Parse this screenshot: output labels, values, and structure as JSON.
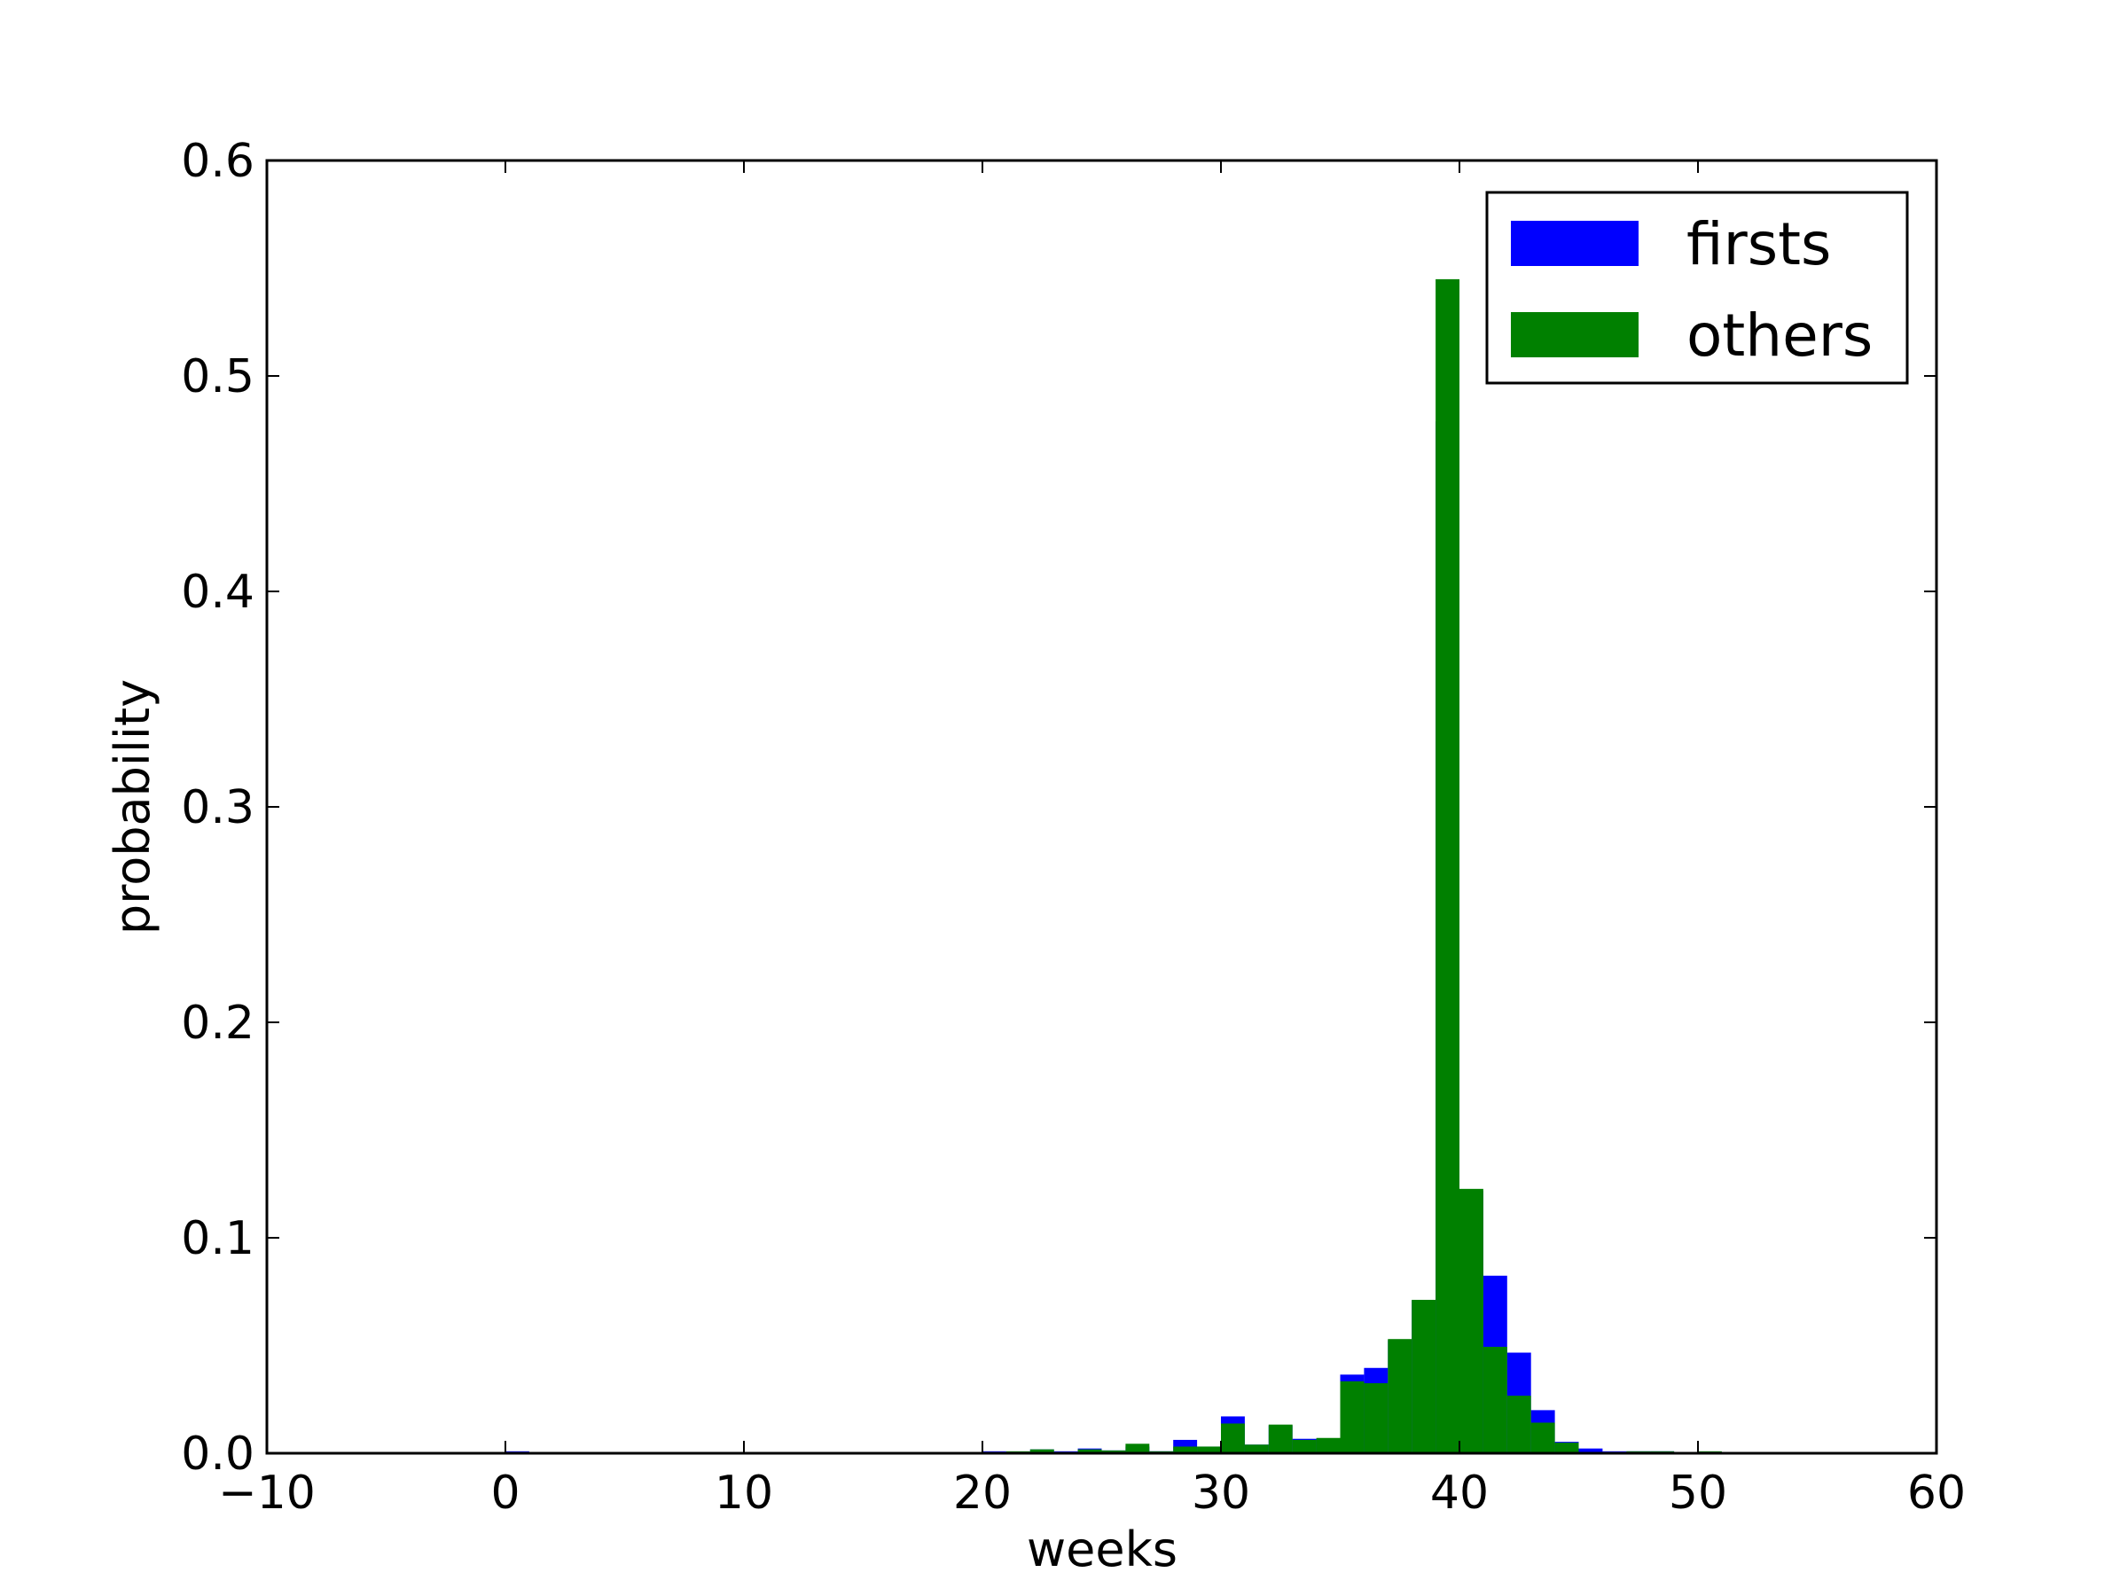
{
  "chart_data": {
    "type": "bar",
    "title": "",
    "xlabel": "weeks",
    "ylabel": "probability",
    "xlim": [
      -10,
      60
    ],
    "ylim": [
      0,
      0.6
    ],
    "xticks": [
      "−10",
      "0",
      "10",
      "20",
      "30",
      "40",
      "50",
      "60"
    ],
    "yticks": [
      "0.0",
      "0.1",
      "0.2",
      "0.3",
      "0.4",
      "0.5",
      "0.6"
    ],
    "grid": false,
    "legend_position": "top-right",
    "bin_width": 1,
    "series": [
      {
        "name": "firsts",
        "color": "#0000ff",
        "bins": [
          {
            "x": 0,
            "value": 0.0009
          },
          {
            "x": 9,
            "value": 0.0004
          },
          {
            "x": 17,
            "value": 0.0004
          },
          {
            "x": 19,
            "value": 0.0004
          },
          {
            "x": 20,
            "value": 0.0009
          },
          {
            "x": 21,
            "value": 0.0004
          },
          {
            "x": 22,
            "value": 0.0018
          },
          {
            "x": 23,
            "value": 0.0009
          },
          {
            "x": 24,
            "value": 0.0022
          },
          {
            "x": 25,
            "value": 0.0013
          },
          {
            "x": 26,
            "value": 0.0031
          },
          {
            "x": 27,
            "value": 0.0009
          },
          {
            "x": 28,
            "value": 0.0062
          },
          {
            "x": 29,
            "value": 0.0031
          },
          {
            "x": 30,
            "value": 0.0171
          },
          {
            "x": 31,
            "value": 0.004
          },
          {
            "x": 32,
            "value": 0.0129
          },
          {
            "x": 33,
            "value": 0.0067
          },
          {
            "x": 34,
            "value": 0.0067
          },
          {
            "x": 35,
            "value": 0.0365
          },
          {
            "x": 36,
            "value": 0.0396
          },
          {
            "x": 37,
            "value": 0.0525
          },
          {
            "x": 38,
            "value": 0.0709
          },
          {
            "x": 39,
            "value": 0.4789
          },
          {
            "x": 40,
            "value": 0.1218
          },
          {
            "x": 41,
            "value": 0.0824
          },
          {
            "x": 42,
            "value": 0.0467
          },
          {
            "x": 43,
            "value": 0.02
          },
          {
            "x": 44,
            "value": 0.0053
          },
          {
            "x": 45,
            "value": 0.0022
          },
          {
            "x": 46,
            "value": 0.0009
          },
          {
            "x": 47,
            "value": 0.0009
          },
          {
            "x": 48,
            "value": 0.0009
          }
        ]
      },
      {
        "name": "others",
        "color": "#008000",
        "bins": [
          {
            "x": 4,
            "value": 0.0004
          },
          {
            "x": 9,
            "value": 0.0004
          },
          {
            "x": 13,
            "value": 0.0004
          },
          {
            "x": 17,
            "value": 0.0004
          },
          {
            "x": 18,
            "value": 0.0004
          },
          {
            "x": 19,
            "value": 0.0004
          },
          {
            "x": 20,
            "value": 0.0004
          },
          {
            "x": 21,
            "value": 0.0009
          },
          {
            "x": 22,
            "value": 0.0018
          },
          {
            "x": 23,
            "value": 0.0004
          },
          {
            "x": 24,
            "value": 0.0018
          },
          {
            "x": 25,
            "value": 0.0013
          },
          {
            "x": 26,
            "value": 0.0044
          },
          {
            "x": 27,
            "value": 0.0009
          },
          {
            "x": 28,
            "value": 0.0031
          },
          {
            "x": 29,
            "value": 0.0031
          },
          {
            "x": 30,
            "value": 0.0138
          },
          {
            "x": 31,
            "value": 0.004
          },
          {
            "x": 32,
            "value": 0.0133
          },
          {
            "x": 33,
            "value": 0.0062
          },
          {
            "x": 34,
            "value": 0.0071
          },
          {
            "x": 35,
            "value": 0.0334
          },
          {
            "x": 36,
            "value": 0.0325
          },
          {
            "x": 37,
            "value": 0.053
          },
          {
            "x": 38,
            "value": 0.0712
          },
          {
            "x": 39,
            "value": 0.5449
          },
          {
            "x": 40,
            "value": 0.1227
          },
          {
            "x": 41,
            "value": 0.0494
          },
          {
            "x": 42,
            "value": 0.0267
          },
          {
            "x": 43,
            "value": 0.0142
          },
          {
            "x": 44,
            "value": 0.0049
          },
          {
            "x": 47,
            "value": 0.0009
          },
          {
            "x": 48,
            "value": 0.0009
          },
          {
            "x": 50,
            "value": 0.0009
          }
        ]
      }
    ]
  }
}
